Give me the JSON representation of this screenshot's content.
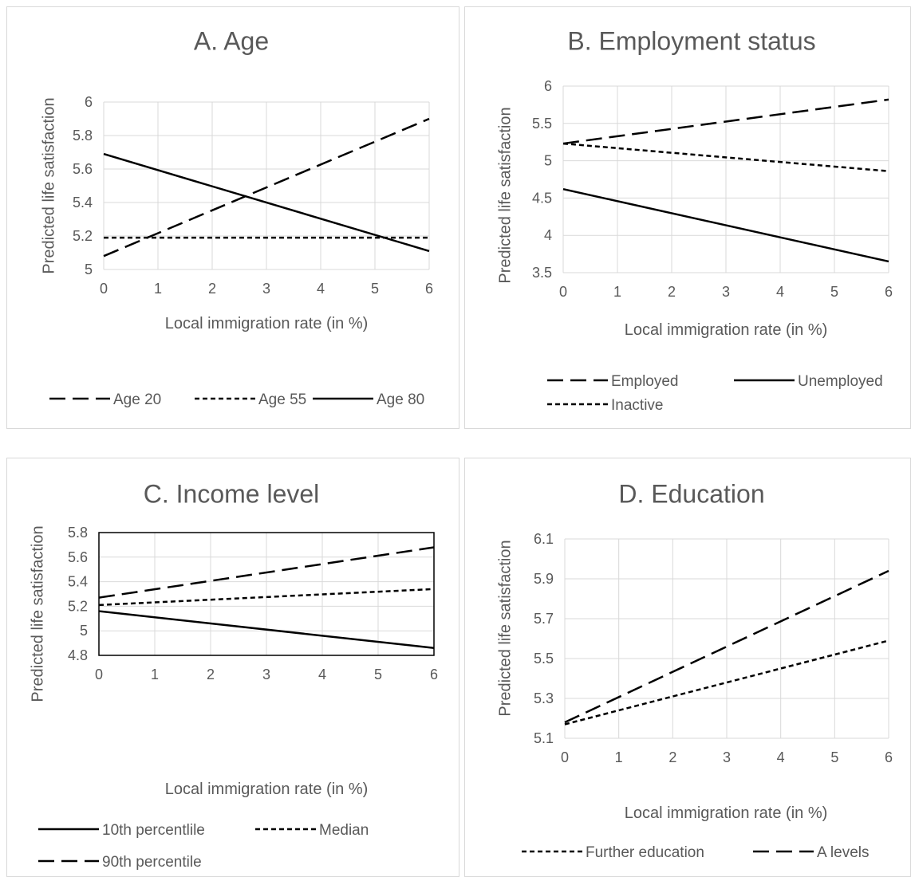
{
  "chart_data": [
    {
      "type": "line",
      "title": "A. Age",
      "xlabel": "Local immigration rate (in %)",
      "ylabel": "Predicted life satisfaction",
      "x": [
        0,
        6
      ],
      "xticks": [
        "0",
        "1",
        "2",
        "3",
        "4",
        "5",
        "6"
      ],
      "yticks": [
        "5",
        "5.2",
        "5.4",
        "5.6",
        "5.8",
        "6"
      ],
      "xlim": [
        0,
        6
      ],
      "ylim": [
        5,
        6
      ],
      "grid": true,
      "legend_position": "bottom",
      "series": [
        {
          "name": "Age 20",
          "style": "long-dash",
          "values": [
            5.08,
            5.9
          ]
        },
        {
          "name": "Age 55",
          "style": "short-dash",
          "values": [
            5.19,
            5.19
          ]
        },
        {
          "name": "Age 80",
          "style": "solid",
          "values": [
            5.69,
            5.11
          ]
        }
      ]
    },
    {
      "type": "line",
      "title": "B. Employment status",
      "xlabel": "Local immigration rate (in %)",
      "ylabel": "Predicted life satisfaction",
      "x": [
        0,
        6
      ],
      "xticks": [
        "0",
        "1",
        "2",
        "3",
        "4",
        "5",
        "6"
      ],
      "yticks": [
        "3.5",
        "4",
        "4.5",
        "5",
        "5.5",
        "6"
      ],
      "xlim": [
        0,
        6
      ],
      "ylim": [
        3.5,
        6
      ],
      "grid": true,
      "legend_position": "bottom",
      "series": [
        {
          "name": "Employed",
          "style": "long-dash",
          "values": [
            5.23,
            5.82
          ]
        },
        {
          "name": "Unemployed",
          "style": "solid",
          "values": [
            4.62,
            3.65
          ]
        },
        {
          "name": "Inactive",
          "style": "short-dash",
          "values": [
            5.23,
            4.86
          ]
        }
      ]
    },
    {
      "type": "line",
      "title": "C. Income level",
      "xlabel": "Local immigration rate (in %)",
      "ylabel": "Predicted life satisfaction",
      "x": [
        0,
        6
      ],
      "xticks": [
        "0",
        "1",
        "2",
        "3",
        "4",
        "5",
        "6"
      ],
      "yticks": [
        "4.8",
        "5",
        "5.2",
        "5.4",
        "5.6",
        "5.8"
      ],
      "xlim": [
        0,
        6
      ],
      "ylim": [
        4.8,
        5.8
      ],
      "grid": true,
      "plot_border": true,
      "legend_position": "bottom",
      "series": [
        {
          "name": "10th percentlile",
          "style": "solid",
          "values": [
            5.16,
            4.86
          ]
        },
        {
          "name": "Median",
          "style": "short-dash",
          "values": [
            5.21,
            5.34
          ]
        },
        {
          "name": "90th percentile",
          "style": "long-dash",
          "values": [
            5.27,
            5.68
          ]
        }
      ]
    },
    {
      "type": "line",
      "title": "D. Education",
      "xlabel": "Local immigration rate (in %)",
      "ylabel": "Predicted life satisfaction",
      "x": [
        0,
        6
      ],
      "xticks": [
        "0",
        "1",
        "2",
        "3",
        "4",
        "5",
        "6"
      ],
      "yticks": [
        "5.1",
        "5.3",
        "5.5",
        "5.7",
        "5.9",
        "6.1"
      ],
      "xlim": [
        0,
        6
      ],
      "ylim": [
        5.1,
        6.1
      ],
      "grid": true,
      "legend_position": "bottom",
      "series": [
        {
          "name": "Further education",
          "style": "short-dash",
          "values": [
            5.17,
            5.59
          ]
        },
        {
          "name": "A levels",
          "style": "long-dash",
          "values": [
            5.18,
            5.94
          ]
        }
      ]
    }
  ]
}
